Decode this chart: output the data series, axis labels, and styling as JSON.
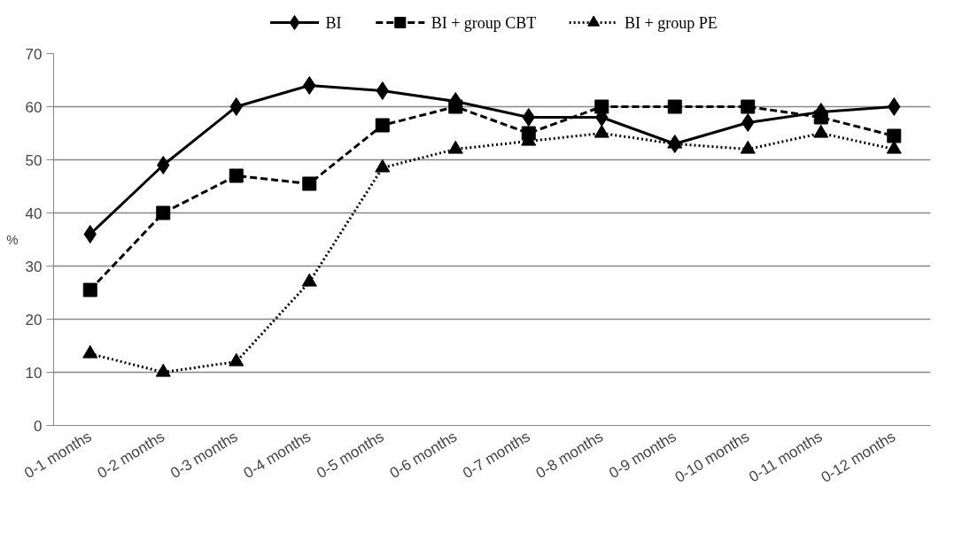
{
  "chart_data": {
    "type": "line",
    "ylabel": "%",
    "categories": [
      "0-1 months",
      "0-2 months",
      "0-3 months",
      "0-4 months",
      "0-5 months",
      "0-6 months",
      "0-7 months",
      "0-8 months",
      "0-9 months",
      "0-10 months",
      "0-11 months",
      "0-12 months"
    ],
    "series": [
      {
        "name": "BI",
        "color": "#000000",
        "marker": "diamond",
        "line_style": "solid",
        "values": [
          36,
          49,
          60,
          64,
          63,
          61,
          58,
          58,
          53,
          57,
          59,
          60
        ]
      },
      {
        "name": "BI + group CBT",
        "color": "#000000",
        "marker": "square",
        "line_style": "dashed",
        "values": [
          25.5,
          40,
          47,
          45.5,
          56.5,
          60,
          55,
          60,
          60,
          60,
          58,
          54.5
        ]
      },
      {
        "name": "BI + group PE",
        "color": "#000000",
        "marker": "triangle",
        "line_style": "dotted",
        "values": [
          13.5,
          10,
          12,
          27,
          48.5,
          52,
          53.5,
          55,
          53,
          52,
          55,
          52
        ]
      }
    ],
    "ylim": [
      0,
      70
    ],
    "yticks": [
      0,
      10,
      20,
      30,
      40,
      50,
      60,
      70
    ],
    "grid": "y",
    "legend": "top"
  }
}
